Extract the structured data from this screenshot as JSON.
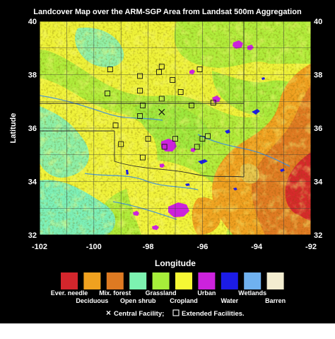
{
  "figure": {
    "title": "Landcover Map over the ARM-SGP Area from Landsat 500m Aggregation",
    "xlabel": "Longitude",
    "ylabel": "Latitude",
    "x_ticks": [
      "-102",
      "-100",
      "-98",
      "-96",
      "-94",
      "-92"
    ],
    "y_ticks": [
      "40",
      "38",
      "36",
      "34",
      "32"
    ],
    "footnote": {
      "central": "Central Facility;",
      "extended": "Extended Facilities."
    }
  },
  "map": {
    "lon_range": [
      -102,
      -92
    ],
    "lat_range": [
      32,
      40
    ],
    "graticule_step_deg": 1,
    "central_facility": {
      "lon": -97.5,
      "lat": 36.6
    },
    "extended_facilities": [
      {
        "lon": -99.4,
        "lat": 38.2
      },
      {
        "lon": -98.3,
        "lat": 37.95
      },
      {
        "lon": -97.6,
        "lat": 38.1
      },
      {
        "lon": -97.5,
        "lat": 38.3
      },
      {
        "lon": -96.1,
        "lat": 38.2
      },
      {
        "lon": -97.1,
        "lat": 37.8
      },
      {
        "lon": -99.5,
        "lat": 37.3
      },
      {
        "lon": -98.3,
        "lat": 37.4
      },
      {
        "lon": -96.8,
        "lat": 37.35
      },
      {
        "lon": -97.5,
        "lat": 37.1
      },
      {
        "lon": -98.2,
        "lat": 36.85
      },
      {
        "lon": -96.4,
        "lat": 36.85
      },
      {
        "lon": -95.6,
        "lat": 36.95
      },
      {
        "lon": -98.3,
        "lat": 36.45
      },
      {
        "lon": -99.2,
        "lat": 36.1
      },
      {
        "lon": -98.0,
        "lat": 35.6
      },
      {
        "lon": -97.0,
        "lat": 35.6
      },
      {
        "lon": -96.0,
        "lat": 35.6
      },
      {
        "lon": -95.8,
        "lat": 35.7
      },
      {
        "lon": -99.0,
        "lat": 35.4
      },
      {
        "lon": -97.4,
        "lat": 35.3
      },
      {
        "lon": -96.2,
        "lat": 35.3
      },
      {
        "lon": -98.2,
        "lat": 34.9
      }
    ]
  },
  "legend": {
    "classes": [
      {
        "label": "Ever. needle",
        "color": "#d3262c",
        "row": 1
      },
      {
        "label": "Deciduous",
        "color": "#f0a11f",
        "row": 2
      },
      {
        "label": "Mix. forest",
        "color": "#dd7a22",
        "row": 1
      },
      {
        "label": "Open shrub",
        "color": "#7cf2b0",
        "row": 2
      },
      {
        "label": "Grassland",
        "color": "#a6ee3a",
        "row": 1
      },
      {
        "label": "Cropland",
        "color": "#f6f734",
        "row": 2
      },
      {
        "label": "Urban",
        "color": "#cc22dc",
        "row": 1
      },
      {
        "label": "Water",
        "color": "#1c1ce6",
        "row": 2
      },
      {
        "label": "Wetlands",
        "color": "#6fb1ef",
        "row": 1
      },
      {
        "label": "Barren",
        "color": "#f3edd0",
        "row": 2
      }
    ]
  }
}
